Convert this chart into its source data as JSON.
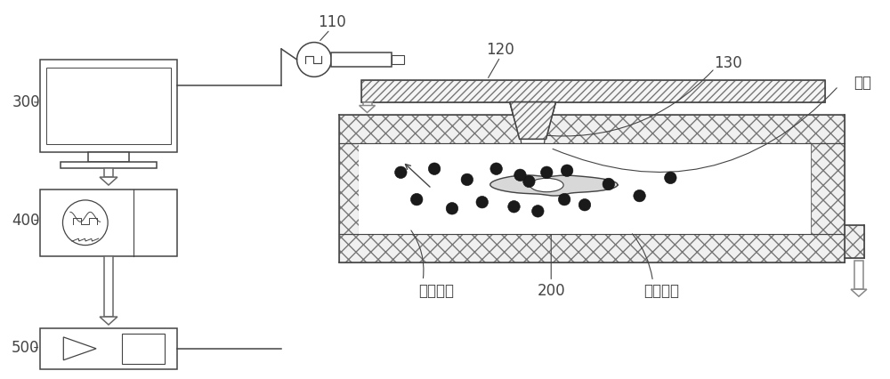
{
  "bg_color": "#ffffff",
  "lc": "#444444",
  "hc": "#888888",
  "label_300": "300",
  "label_400": "400",
  "label_500": "500",
  "label_110": "110",
  "label_120": "120",
  "label_130": "130",
  "label_200": "200",
  "label_xibao": "细胞",
  "label_nami": "纳米分子",
  "label_shouxian": "受限空间"
}
